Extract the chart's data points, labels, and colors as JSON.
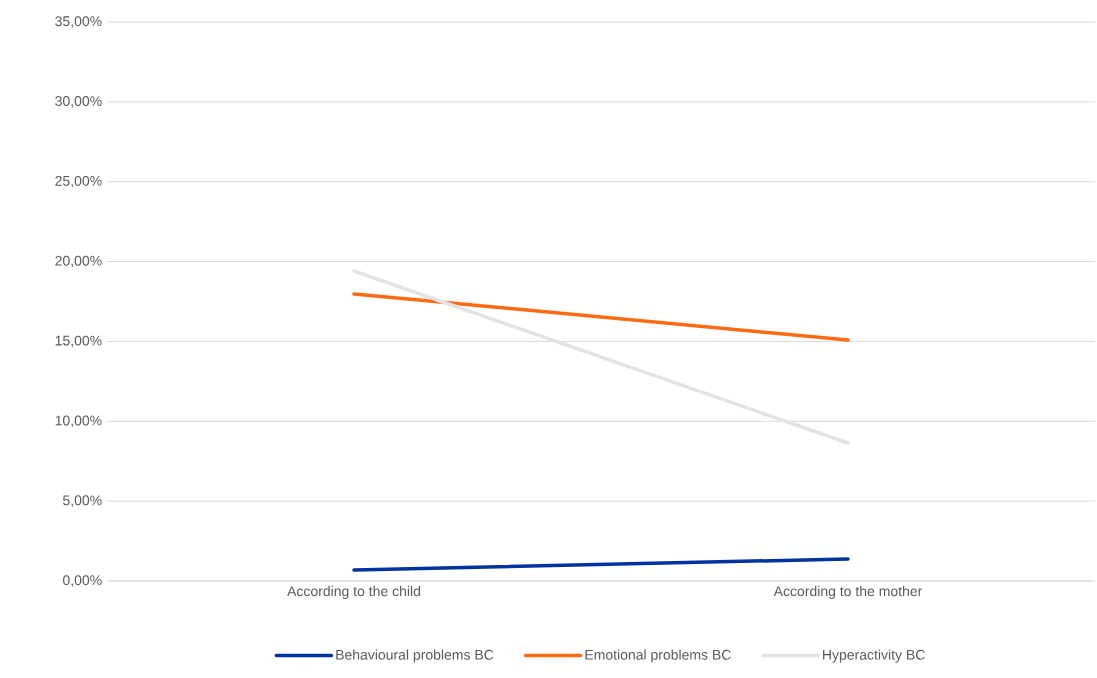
{
  "chart_data": {
    "type": "line",
    "categories": [
      "According to the child",
      "According to the mother"
    ],
    "series": [
      {
        "name": "Behavioural problems BC",
        "color": "#0033a0",
        "values": [
          0.69,
          1.38
        ]
      },
      {
        "name": "Emotional problems BC",
        "color": "#ff6a13",
        "values": [
          17.97,
          15.09
        ]
      },
      {
        "name": "Hyperactivity BC",
        "color": "#e3e3e3",
        "values": [
          19.41,
          8.64
        ]
      }
    ],
    "ylim": [
      0,
      35
    ],
    "yticks": [
      {
        "value": 0,
        "label": "0,00%"
      },
      {
        "value": 5,
        "label": "5,00%"
      },
      {
        "value": 10,
        "label": "10,00%"
      },
      {
        "value": 15,
        "label": "15,00%"
      },
      {
        "value": 20,
        "label": "20,00%"
      },
      {
        "value": 25,
        "label": "25,00%"
      },
      {
        "value": 30,
        "label": "30,00%"
      },
      {
        "value": 35,
        "label": "35,00%"
      }
    ],
    "grid": "y",
    "legend": "bottom",
    "marker": "none",
    "line_style": "solid"
  }
}
